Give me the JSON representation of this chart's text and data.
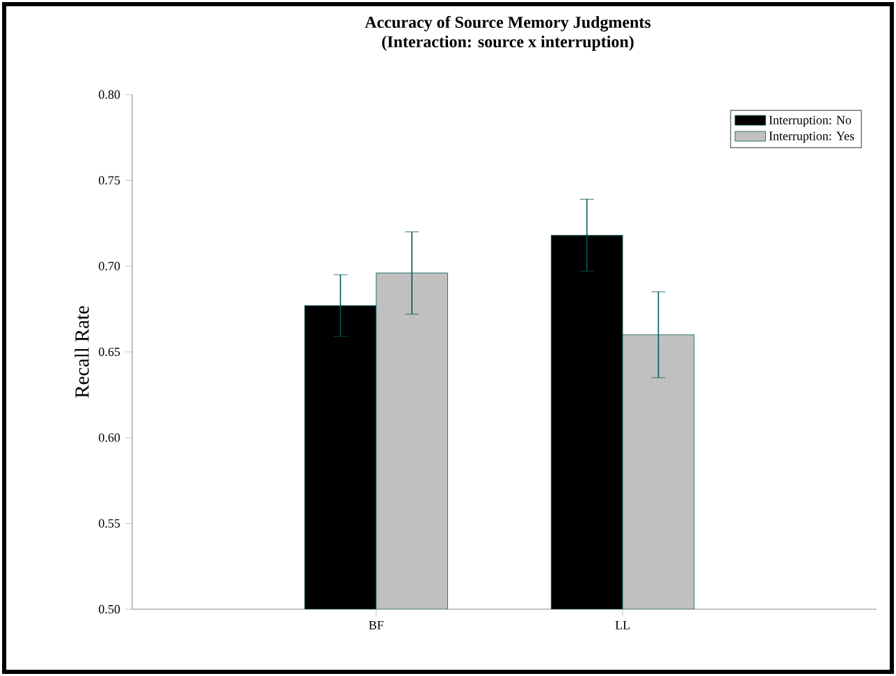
{
  "chart_data": {
    "type": "bar",
    "title": "Accuracy of Source Memory Judgments",
    "subtitle": "(Interaction: source x interruption)",
    "ylabel": "Recall Rate",
    "categories": [
      "BF",
      "LL"
    ],
    "series": [
      {
        "name": "Interruption: No",
        "color": "#000000",
        "values": [
          0.677,
          0.718
        ],
        "errors": [
          0.018,
          0.021
        ]
      },
      {
        "name": "Interruption: Yes",
        "color": "#c0c0c0",
        "values": [
          0.696,
          0.66
        ],
        "errors": [
          0.024,
          0.025
        ]
      }
    ],
    "ylim": [
      0.5,
      0.8
    ],
    "yticks": [
      {
        "value": 0.5,
        "label": "0.50"
      },
      {
        "value": 0.55,
        "label": "0.55"
      },
      {
        "value": 0.6,
        "label": "0.60"
      },
      {
        "value": 0.65,
        "label": "0.65"
      },
      {
        "value": 0.7,
        "label": "0.70"
      },
      {
        "value": 0.75,
        "label": "0.75"
      },
      {
        "value": 0.8,
        "label": "0.80"
      }
    ],
    "legend": "top right",
    "grid": false
  }
}
